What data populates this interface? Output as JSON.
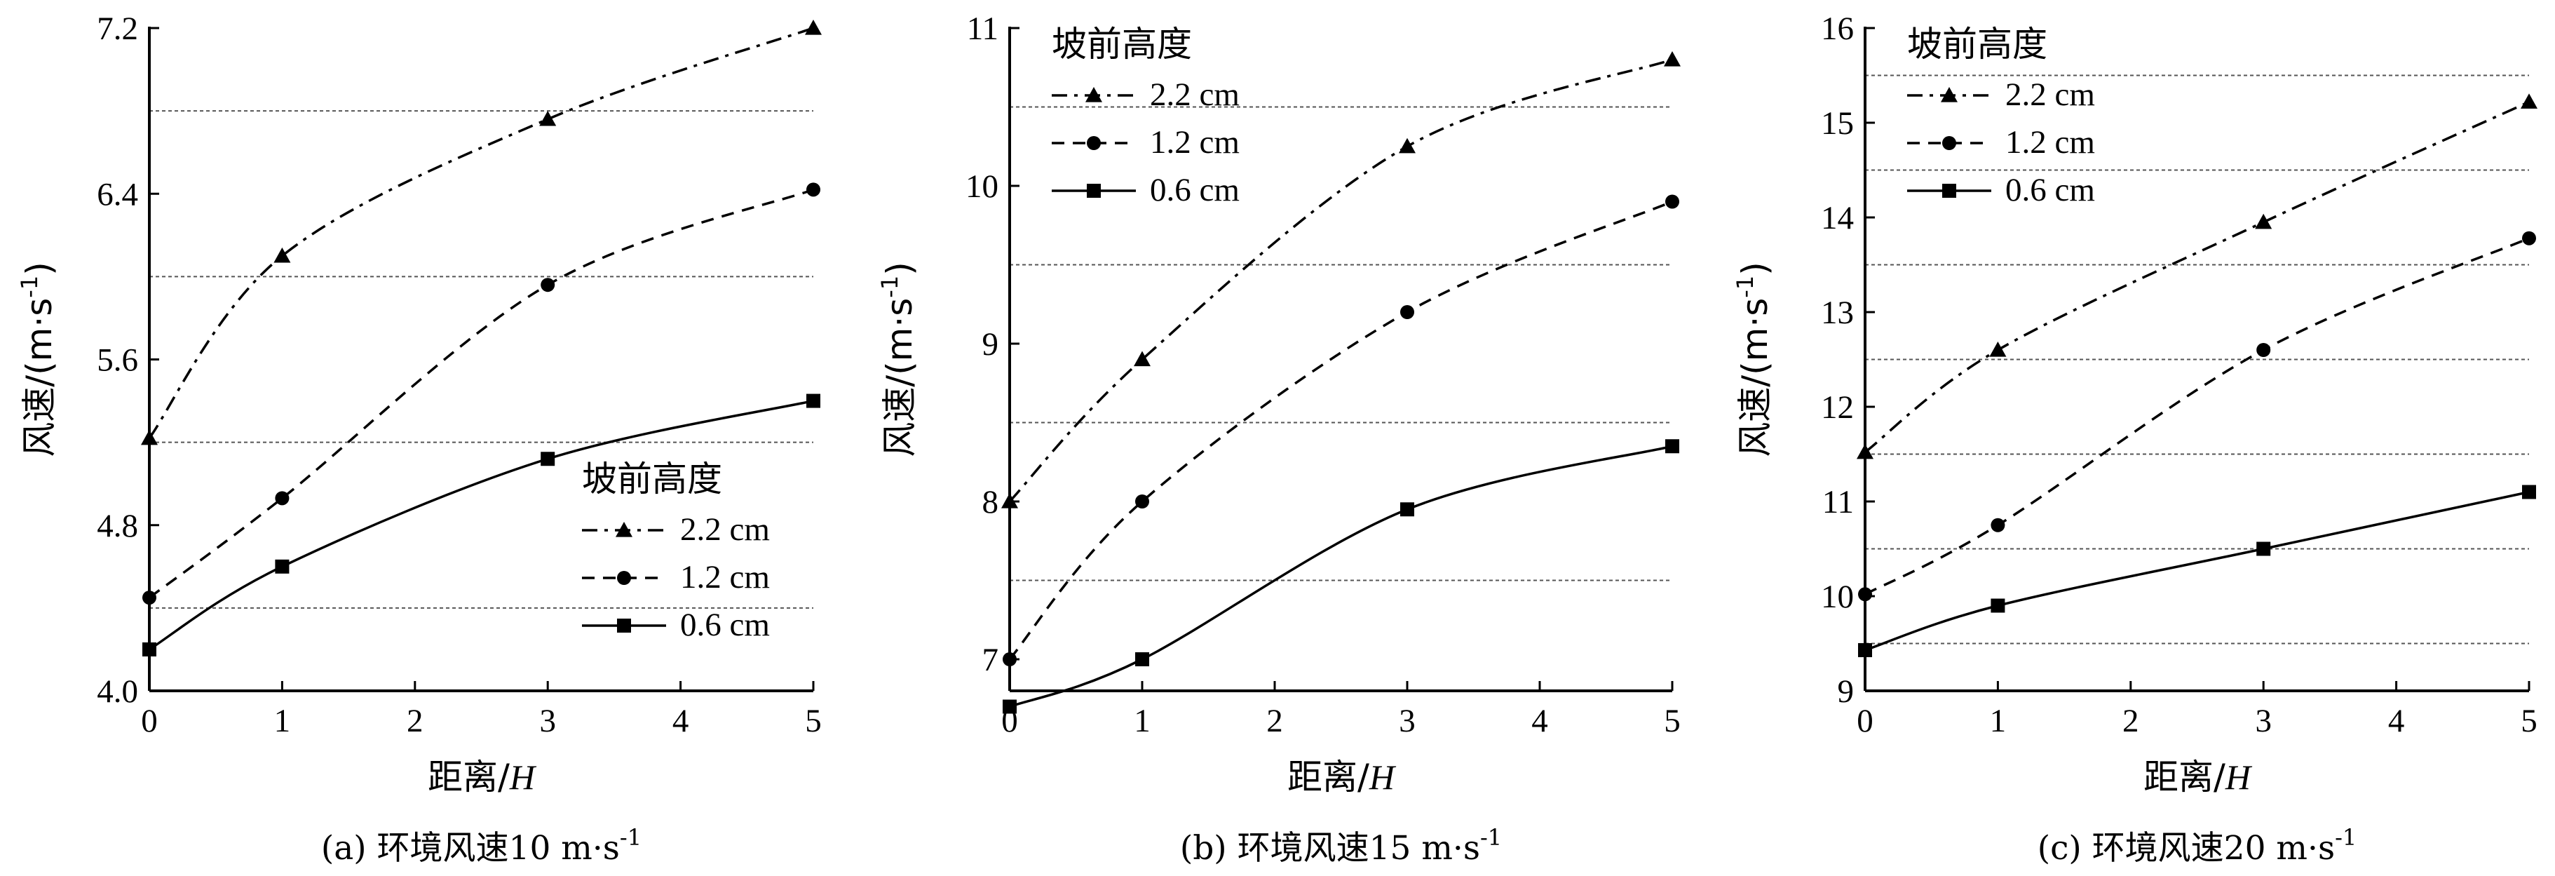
{
  "chart_data": [
    {
      "type": "line",
      "caption": "(a) 环境风速10 m·s",
      "caption_sup": "-1",
      "xlabel": "距离/",
      "xlabel_italic": "H",
      "ylabel": "风速/(m·s",
      "ylabel_sup": "-1",
      "ylabel_close": ")",
      "x_ticks": [
        "0",
        "1",
        "2",
        "3",
        "4",
        "5"
      ],
      "y_ticks": [
        "4.0",
        "4.8",
        "5.6",
        "6.4",
        "7.2"
      ],
      "xlim": [
        0,
        5
      ],
      "ylim": [
        4.0,
        7.2
      ],
      "grid_y": [
        4.4,
        5.2,
        6.0,
        6.8
      ],
      "legend_title": "坡前高度",
      "legend_position": "lower-right",
      "series": [
        {
          "name": "2.2 cm",
          "marker": "triangle",
          "dash": "dashdot",
          "x": [
            0,
            1,
            3,
            5
          ],
          "y": [
            5.22,
            6.1,
            6.76,
            7.2
          ]
        },
        {
          "name": "1.2 cm",
          "marker": "circle",
          "dash": "dashed",
          "x": [
            0,
            1,
            3,
            5
          ],
          "y": [
            4.45,
            4.93,
            5.96,
            6.42
          ]
        },
        {
          "name": "0.6 cm",
          "marker": "square",
          "dash": "solid",
          "x": [
            0,
            1,
            3,
            5
          ],
          "y": [
            4.2,
            4.6,
            5.12,
            5.4
          ]
        }
      ]
    },
    {
      "type": "line",
      "caption": "(b) 环境风速15 m·s",
      "caption_sup": "-1",
      "xlabel": "距离/",
      "xlabel_italic": "H",
      "ylabel": "风速/(m·s",
      "ylabel_sup": "-1",
      "ylabel_close": ")",
      "x_ticks": [
        "0",
        "1",
        "2",
        "3",
        "4",
        "5"
      ],
      "y_ticks": [
        "7",
        "8",
        "9",
        "10",
        "11"
      ],
      "xlim": [
        0,
        5
      ],
      "ylim": [
        6.8,
        11
      ],
      "grid_y": [
        7.5,
        8.5,
        9.5,
        10.5
      ],
      "legend_title": "坡前高度",
      "legend_position": "top-left",
      "series": [
        {
          "name": "2.2 cm",
          "marker": "triangle",
          "dash": "dashdot",
          "x": [
            0,
            1,
            3,
            5
          ],
          "y": [
            8.0,
            8.9,
            10.25,
            10.8
          ]
        },
        {
          "name": "1.2 cm",
          "marker": "circle",
          "dash": "dashed",
          "x": [
            0,
            1,
            3,
            5
          ],
          "y": [
            7.0,
            8.0,
            9.2,
            9.9
          ]
        },
        {
          "name": "0.6 cm",
          "marker": "square",
          "dash": "solid",
          "x": [
            0,
            1,
            3,
            5
          ],
          "y": [
            6.7,
            7.0,
            7.95,
            8.35
          ]
        }
      ]
    },
    {
      "type": "line",
      "caption": "(c) 环境风速20 m·s",
      "caption_sup": "-1",
      "xlabel": "距离/",
      "xlabel_italic": "H",
      "ylabel": "风速/(m·s",
      "ylabel_sup": "-1",
      "ylabel_close": ")",
      "x_ticks": [
        "0",
        "1",
        "2",
        "3",
        "4",
        "5"
      ],
      "y_ticks": [
        "9",
        "10",
        "11",
        "12",
        "13",
        "14",
        "15",
        "16"
      ],
      "xlim": [
        0,
        5
      ],
      "ylim": [
        9,
        16
      ],
      "grid_y": [
        9.5,
        10.5,
        11.5,
        12.5,
        13.5,
        14.5,
        15.5
      ],
      "legend_title": "坡前高度",
      "legend_position": "top-left",
      "series": [
        {
          "name": "2.2 cm",
          "marker": "triangle",
          "dash": "dashdot",
          "x": [
            0,
            1,
            3,
            5
          ],
          "y": [
            11.52,
            12.6,
            13.95,
            15.22
          ]
        },
        {
          "name": "1.2 cm",
          "marker": "circle",
          "dash": "dashed",
          "x": [
            0,
            1,
            3,
            5
          ],
          "y": [
            10.02,
            10.75,
            12.6,
            13.78
          ]
        },
        {
          "name": "0.6 cm",
          "marker": "square",
          "dash": "solid",
          "x": [
            0,
            1,
            3,
            5
          ],
          "y": [
            9.43,
            9.9,
            10.5,
            11.1
          ]
        }
      ]
    }
  ]
}
